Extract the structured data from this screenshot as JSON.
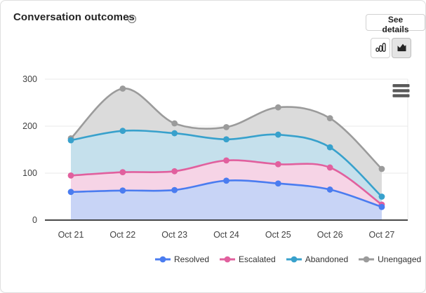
{
  "header": {
    "title": "Conversation outcomes",
    "see_details_label": "See details"
  },
  "toolbar": {
    "bar_chart_toggle": "bar-chart-icon",
    "area_chart_toggle": "area-chart-icon",
    "selected_view": "area"
  },
  "colors": {
    "resolved": "#4a7cf0",
    "escalated": "#e1609e",
    "abandoned": "#38a1cc",
    "unengaged": "#9b9b9b",
    "resolved_fill": "#c8d4f6",
    "escalated_fill": "#f6d4e6",
    "abandoned_fill": "#c5e0ec",
    "unengaged_fill": "#dbdbdb",
    "grid": "#e8e8e8",
    "axis": "#2f2f2f"
  },
  "chart_data": {
    "type": "area",
    "title": "Conversation outcomes",
    "categories": [
      "Oct 21",
      "Oct 22",
      "Oct 23",
      "Oct 24",
      "Oct 25",
      "Oct 26",
      "Oct 27"
    ],
    "series": [
      {
        "name": "Resolved",
        "color": "#4a7cf0",
        "fill": "#c8d4f6",
        "values": [
          60,
          63,
          64,
          84,
          78,
          65,
          28
        ]
      },
      {
        "name": "Escalated",
        "color": "#e1609e",
        "fill": "#f6d4e6",
        "values": [
          95,
          102,
          104,
          127,
          119,
          112,
          33
        ]
      },
      {
        "name": "Abandoned",
        "color": "#38a1cc",
        "fill": "#c5e0ec",
        "values": [
          170,
          190,
          185,
          172,
          182,
          155,
          50
        ]
      },
      {
        "name": "Unengaged",
        "color": "#9b9b9b",
        "fill": "#dbdbdb",
        "values": [
          174,
          280,
          206,
          198,
          240,
          217,
          109
        ]
      }
    ],
    "xlabel": "",
    "ylabel": "",
    "yticks": [
      0,
      100,
      200,
      300
    ],
    "ylim": [
      0,
      300
    ],
    "grid": true,
    "legend_position": "bottom",
    "smooth": true
  }
}
